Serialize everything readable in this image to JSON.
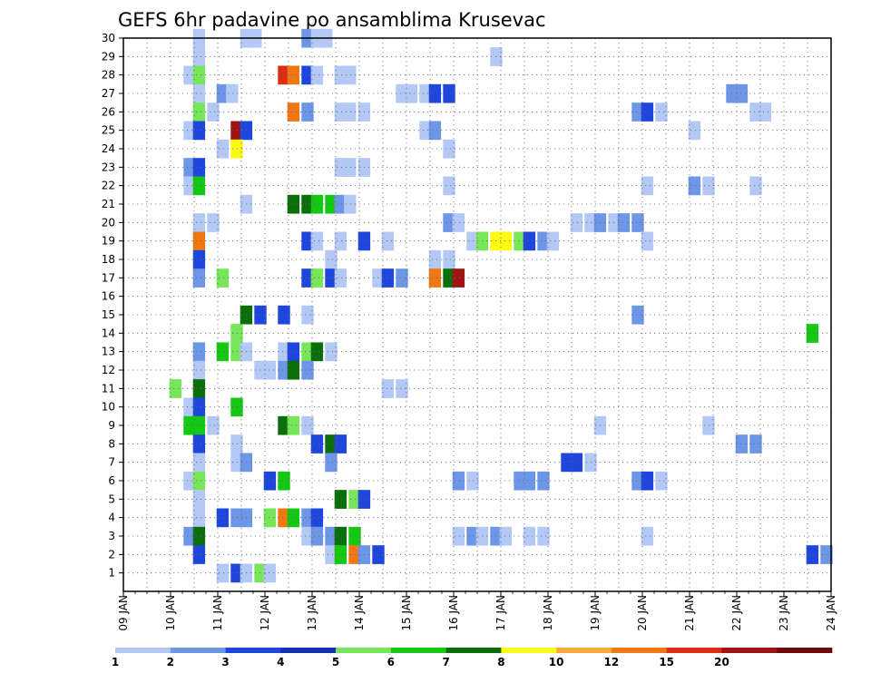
{
  "chart_data": {
    "type": "heatmap",
    "title": "GEFS 6hr padavine po ansamblima Krusevac",
    "xlabel": "",
    "ylabel": "",
    "x_tick_labels": [
      "09 JAN",
      "10 JAN",
      "11 JAN",
      "12 JAN",
      "13 JAN",
      "14 JAN",
      "15 JAN",
      "16 JAN",
      "17 JAN",
      "18 JAN",
      "19 JAN",
      "20 JAN",
      "21 JAN",
      "22 JAN",
      "23 JAN",
      "24 JAN"
    ],
    "xlim_days": [
      9,
      24
    ],
    "ylim": [
      0,
      30
    ],
    "y_ticks": [
      1,
      2,
      3,
      4,
      5,
      6,
      7,
      8,
      9,
      10,
      11,
      12,
      13,
      14,
      15,
      16,
      17,
      18,
      19,
      20,
      21,
      22,
      23,
      24,
      25,
      26,
      27,
      28,
      29,
      30
    ],
    "grid": true,
    "colorbar": {
      "labels": [
        "1",
        "2",
        "3",
        "4",
        "5",
        "6",
        "7",
        "8",
        "10",
        "12",
        "15",
        "20"
      ],
      "colors": [
        "#b4c8f5",
        "#6e96e6",
        "#1e46dc",
        "#1432b4",
        "#78e65a",
        "#14c814",
        "#0a6e0a",
        "#fafa14",
        "#faaa3c",
        "#f07814",
        "#dc2d14",
        "#a01414",
        "#6e0a0a"
      ]
    },
    "points": [
      {
        "day": 10.6,
        "member": 30,
        "bin": 1
      },
      {
        "day": 11.6,
        "member": 30,
        "bin": 1
      },
      {
        "day": 11.8,
        "member": 30,
        "bin": 1
      },
      {
        "day": 12.9,
        "member": 30,
        "bin": 2
      },
      {
        "day": 13.1,
        "member": 30,
        "bin": 1
      },
      {
        "day": 13.3,
        "member": 30,
        "bin": 1
      },
      {
        "day": 10.6,
        "member": 29,
        "bin": 1
      },
      {
        "day": 16.9,
        "member": 29,
        "bin": 1
      },
      {
        "day": 10.4,
        "member": 28,
        "bin": 1
      },
      {
        "day": 10.6,
        "member": 28,
        "bin": 5
      },
      {
        "day": 12.4,
        "member": 28,
        "bin": 11
      },
      {
        "day": 12.6,
        "member": 28,
        "bin": 10
      },
      {
        "day": 12.9,
        "member": 28,
        "bin": 3
      },
      {
        "day": 13.1,
        "member": 28,
        "bin": 1
      },
      {
        "day": 13.6,
        "member": 28,
        "bin": 1
      },
      {
        "day": 13.8,
        "member": 28,
        "bin": 1
      },
      {
        "day": 10.6,
        "member": 27,
        "bin": 1
      },
      {
        "day": 11.1,
        "member": 27,
        "bin": 2
      },
      {
        "day": 11.3,
        "member": 27,
        "bin": 1
      },
      {
        "day": 14.9,
        "member": 27,
        "bin": 1
      },
      {
        "day": 15.1,
        "member": 27,
        "bin": 1
      },
      {
        "day": 15.4,
        "member": 27,
        "bin": 1
      },
      {
        "day": 15.6,
        "member": 27,
        "bin": 3
      },
      {
        "day": 15.9,
        "member": 27,
        "bin": 3
      },
      {
        "day": 21.9,
        "member": 27,
        "bin": 2
      },
      {
        "day": 22.1,
        "member": 27,
        "bin": 2
      },
      {
        "day": 10.6,
        "member": 26,
        "bin": 5
      },
      {
        "day": 10.9,
        "member": 26,
        "bin": 1
      },
      {
        "day": 12.6,
        "member": 26,
        "bin": 10
      },
      {
        "day": 12.9,
        "member": 26,
        "bin": 2
      },
      {
        "day": 13.6,
        "member": 26,
        "bin": 1
      },
      {
        "day": 13.8,
        "member": 26,
        "bin": 1
      },
      {
        "day": 14.1,
        "member": 26,
        "bin": 1
      },
      {
        "day": 19.9,
        "member": 26,
        "bin": 2
      },
      {
        "day": 20.1,
        "member": 26,
        "bin": 3
      },
      {
        "day": 20.4,
        "member": 26,
        "bin": 1
      },
      {
        "day": 22.4,
        "member": 26,
        "bin": 1
      },
      {
        "day": 22.6,
        "member": 26,
        "bin": 1
      },
      {
        "day": 10.4,
        "member": 25,
        "bin": 1
      },
      {
        "day": 10.6,
        "member": 25,
        "bin": 3
      },
      {
        "day": 11.4,
        "member": 25,
        "bin": 12
      },
      {
        "day": 11.6,
        "member": 25,
        "bin": 3
      },
      {
        "day": 15.4,
        "member": 25,
        "bin": 1
      },
      {
        "day": 15.6,
        "member": 25,
        "bin": 2
      },
      {
        "day": 21.1,
        "member": 25,
        "bin": 1
      },
      {
        "day": 11.1,
        "member": 24,
        "bin": 1
      },
      {
        "day": 11.4,
        "member": 24,
        "bin": 8
      },
      {
        "day": 15.9,
        "member": 24,
        "bin": 1
      },
      {
        "day": 10.4,
        "member": 23,
        "bin": 2
      },
      {
        "day": 10.6,
        "member": 23,
        "bin": 3
      },
      {
        "day": 13.6,
        "member": 23,
        "bin": 1
      },
      {
        "day": 13.8,
        "member": 23,
        "bin": 1
      },
      {
        "day": 14.1,
        "member": 23,
        "bin": 1
      },
      {
        "day": 10.4,
        "member": 22,
        "bin": 1
      },
      {
        "day": 10.6,
        "member": 22,
        "bin": 6
      },
      {
        "day": 15.9,
        "member": 22,
        "bin": 1
      },
      {
        "day": 20.1,
        "member": 22,
        "bin": 1
      },
      {
        "day": 21.1,
        "member": 22,
        "bin": 2
      },
      {
        "day": 21.4,
        "member": 22,
        "bin": 1
      },
      {
        "day": 22.4,
        "member": 22,
        "bin": 1
      },
      {
        "day": 11.6,
        "member": 21,
        "bin": 1
      },
      {
        "day": 12.6,
        "member": 21,
        "bin": 7
      },
      {
        "day": 12.9,
        "member": 21,
        "bin": 7
      },
      {
        "day": 13.1,
        "member": 21,
        "bin": 6
      },
      {
        "day": 13.4,
        "member": 21,
        "bin": 6
      },
      {
        "day": 13.6,
        "member": 21,
        "bin": 2
      },
      {
        "day": 13.8,
        "member": 21,
        "bin": 1
      },
      {
        "day": 10.6,
        "member": 20,
        "bin": 1
      },
      {
        "day": 10.9,
        "member": 20,
        "bin": 1
      },
      {
        "day": 15.9,
        "member": 20,
        "bin": 2
      },
      {
        "day": 16.1,
        "member": 20,
        "bin": 1
      },
      {
        "day": 18.6,
        "member": 20,
        "bin": 1
      },
      {
        "day": 18.9,
        "member": 20,
        "bin": 1
      },
      {
        "day": 19.1,
        "member": 20,
        "bin": 2
      },
      {
        "day": 19.4,
        "member": 20,
        "bin": 1
      },
      {
        "day": 19.6,
        "member": 20,
        "bin": 2
      },
      {
        "day": 19.9,
        "member": 20,
        "bin": 2
      },
      {
        "day": 10.6,
        "member": 19,
        "bin": 10
      },
      {
        "day": 12.9,
        "member": 19,
        "bin": 3
      },
      {
        "day": 13.1,
        "member": 19,
        "bin": 1
      },
      {
        "day": 13.6,
        "member": 19,
        "bin": 1
      },
      {
        "day": 14.1,
        "member": 19,
        "bin": 3
      },
      {
        "day": 14.6,
        "member": 19,
        "bin": 1
      },
      {
        "day": 16.4,
        "member": 19,
        "bin": 1
      },
      {
        "day": 16.6,
        "member": 19,
        "bin": 5
      },
      {
        "day": 16.9,
        "member": 19,
        "bin": 8
      },
      {
        "day": 17.1,
        "member": 19,
        "bin": 8
      },
      {
        "day": 17.4,
        "member": 19,
        "bin": 5
      },
      {
        "day": 17.6,
        "member": 19,
        "bin": 3
      },
      {
        "day": 17.9,
        "member": 19,
        "bin": 2
      },
      {
        "day": 18.1,
        "member": 19,
        "bin": 1
      },
      {
        "day": 20.1,
        "member": 19,
        "bin": 1
      },
      {
        "day": 10.6,
        "member": 18,
        "bin": 3
      },
      {
        "day": 13.4,
        "member": 18,
        "bin": 1
      },
      {
        "day": 15.6,
        "member": 18,
        "bin": 1
      },
      {
        "day": 15.9,
        "member": 18,
        "bin": 1
      },
      {
        "day": 10.6,
        "member": 17,
        "bin": 2
      },
      {
        "day": 11.1,
        "member": 17,
        "bin": 5
      },
      {
        "day": 12.9,
        "member": 17,
        "bin": 3
      },
      {
        "day": 13.1,
        "member": 17,
        "bin": 5
      },
      {
        "day": 13.4,
        "member": 17,
        "bin": 3
      },
      {
        "day": 13.6,
        "member": 17,
        "bin": 1
      },
      {
        "day": 14.4,
        "member": 17,
        "bin": 1
      },
      {
        "day": 14.6,
        "member": 17,
        "bin": 3
      },
      {
        "day": 14.9,
        "member": 17,
        "bin": 2
      },
      {
        "day": 15.6,
        "member": 17,
        "bin": 10
      },
      {
        "day": 15.9,
        "member": 17,
        "bin": 7
      },
      {
        "day": 16.1,
        "member": 17,
        "bin": 12
      },
      {
        "day": 11.6,
        "member": 15,
        "bin": 7
      },
      {
        "day": 11.9,
        "member": 15,
        "bin": 3
      },
      {
        "day": 12.4,
        "member": 15,
        "bin": 3
      },
      {
        "day": 12.9,
        "member": 15,
        "bin": 1
      },
      {
        "day": 19.9,
        "member": 15,
        "bin": 2
      },
      {
        "day": 11.4,
        "member": 14,
        "bin": 5
      },
      {
        "day": 23.6,
        "member": 14,
        "bin": 6
      },
      {
        "day": 10.6,
        "member": 13,
        "bin": 2
      },
      {
        "day": 11.1,
        "member": 13,
        "bin": 6
      },
      {
        "day": 11.4,
        "member": 13,
        "bin": 5
      },
      {
        "day": 11.6,
        "member": 13,
        "bin": 1
      },
      {
        "day": 12.4,
        "member": 13,
        "bin": 1
      },
      {
        "day": 12.6,
        "member": 13,
        "bin": 3
      },
      {
        "day": 12.9,
        "member": 13,
        "bin": 5
      },
      {
        "day": 13.1,
        "member": 13,
        "bin": 7
      },
      {
        "day": 13.4,
        "member": 13,
        "bin": 1
      },
      {
        "day": 10.6,
        "member": 12,
        "bin": 1
      },
      {
        "day": 11.9,
        "member": 12,
        "bin": 1
      },
      {
        "day": 12.1,
        "member": 12,
        "bin": 1
      },
      {
        "day": 12.4,
        "member": 12,
        "bin": 2
      },
      {
        "day": 12.6,
        "member": 12,
        "bin": 7
      },
      {
        "day": 12.9,
        "member": 12,
        "bin": 2
      },
      {
        "day": 10.1,
        "member": 11,
        "bin": 5
      },
      {
        "day": 10.6,
        "member": 11,
        "bin": 7
      },
      {
        "day": 14.6,
        "member": 11,
        "bin": 1
      },
      {
        "day": 14.9,
        "member": 11,
        "bin": 1
      },
      {
        "day": 10.4,
        "member": 10,
        "bin": 1
      },
      {
        "day": 10.6,
        "member": 10,
        "bin": 3
      },
      {
        "day": 11.4,
        "member": 10,
        "bin": 6
      },
      {
        "day": 10.4,
        "member": 9,
        "bin": 6
      },
      {
        "day": 10.6,
        "member": 9,
        "bin": 6
      },
      {
        "day": 10.9,
        "member": 9,
        "bin": 1
      },
      {
        "day": 12.4,
        "member": 9,
        "bin": 7
      },
      {
        "day": 12.6,
        "member": 9,
        "bin": 5
      },
      {
        "day": 12.9,
        "member": 9,
        "bin": 1
      },
      {
        "day": 19.1,
        "member": 9,
        "bin": 1
      },
      {
        "day": 21.4,
        "member": 9,
        "bin": 1
      },
      {
        "day": 10.6,
        "member": 8,
        "bin": 3
      },
      {
        "day": 11.4,
        "member": 8,
        "bin": 1
      },
      {
        "day": 13.1,
        "member": 8,
        "bin": 3
      },
      {
        "day": 13.4,
        "member": 8,
        "bin": 7
      },
      {
        "day": 13.6,
        "member": 8,
        "bin": 3
      },
      {
        "day": 22.1,
        "member": 8,
        "bin": 2
      },
      {
        "day": 22.4,
        "member": 8,
        "bin": 2
      },
      {
        "day": 10.6,
        "member": 7,
        "bin": 1
      },
      {
        "day": 11.4,
        "member": 7,
        "bin": 1
      },
      {
        "day": 11.6,
        "member": 7,
        "bin": 2
      },
      {
        "day": 13.4,
        "member": 7,
        "bin": 2
      },
      {
        "day": 18.4,
        "member": 7,
        "bin": 3
      },
      {
        "day": 18.6,
        "member": 7,
        "bin": 3
      },
      {
        "day": 18.9,
        "member": 7,
        "bin": 1
      },
      {
        "day": 10.4,
        "member": 6,
        "bin": 1
      },
      {
        "day": 10.6,
        "member": 6,
        "bin": 5
      },
      {
        "day": 12.1,
        "member": 6,
        "bin": 3
      },
      {
        "day": 12.4,
        "member": 6,
        "bin": 6
      },
      {
        "day": 16.1,
        "member": 6,
        "bin": 2
      },
      {
        "day": 16.4,
        "member": 6,
        "bin": 1
      },
      {
        "day": 17.4,
        "member": 6,
        "bin": 2
      },
      {
        "day": 17.6,
        "member": 6,
        "bin": 2
      },
      {
        "day": 17.9,
        "member": 6,
        "bin": 2
      },
      {
        "day": 19.9,
        "member": 6,
        "bin": 2
      },
      {
        "day": 20.1,
        "member": 6,
        "bin": 3
      },
      {
        "day": 20.4,
        "member": 6,
        "bin": 1
      },
      {
        "day": 10.6,
        "member": 5,
        "bin": 1
      },
      {
        "day": 13.6,
        "member": 5,
        "bin": 7
      },
      {
        "day": 13.9,
        "member": 5,
        "bin": 5
      },
      {
        "day": 14.1,
        "member": 5,
        "bin": 3
      },
      {
        "day": 10.6,
        "member": 4,
        "bin": 1
      },
      {
        "day": 11.1,
        "member": 4,
        "bin": 3
      },
      {
        "day": 11.4,
        "member": 4,
        "bin": 2
      },
      {
        "day": 11.6,
        "member": 4,
        "bin": 2
      },
      {
        "day": 12.1,
        "member": 4,
        "bin": 5
      },
      {
        "day": 12.4,
        "member": 4,
        "bin": 10
      },
      {
        "day": 12.6,
        "member": 4,
        "bin": 6
      },
      {
        "day": 12.9,
        "member": 4,
        "bin": 2
      },
      {
        "day": 13.1,
        "member": 4,
        "bin": 3
      },
      {
        "day": 10.4,
        "member": 3,
        "bin": 2
      },
      {
        "day": 10.6,
        "member": 3,
        "bin": 7
      },
      {
        "day": 12.9,
        "member": 3,
        "bin": 1
      },
      {
        "day": 13.1,
        "member": 3,
        "bin": 2
      },
      {
        "day": 13.4,
        "member": 3,
        "bin": 2
      },
      {
        "day": 13.6,
        "member": 3,
        "bin": 7
      },
      {
        "day": 13.9,
        "member": 3,
        "bin": 6
      },
      {
        "day": 16.1,
        "member": 3,
        "bin": 1
      },
      {
        "day": 16.4,
        "member": 3,
        "bin": 2
      },
      {
        "day": 16.6,
        "member": 3,
        "bin": 1
      },
      {
        "day": 16.9,
        "member": 3,
        "bin": 2
      },
      {
        "day": 17.1,
        "member": 3,
        "bin": 1
      },
      {
        "day": 17.6,
        "member": 3,
        "bin": 1
      },
      {
        "day": 17.9,
        "member": 3,
        "bin": 1
      },
      {
        "day": 20.1,
        "member": 3,
        "bin": 1
      },
      {
        "day": 10.6,
        "member": 2,
        "bin": 3
      },
      {
        "day": 13.4,
        "member": 2,
        "bin": 1
      },
      {
        "day": 13.6,
        "member": 2,
        "bin": 6
      },
      {
        "day": 13.9,
        "member": 2,
        "bin": 10
      },
      {
        "day": 14.1,
        "member": 2,
        "bin": 2
      },
      {
        "day": 14.4,
        "member": 2,
        "bin": 3
      },
      {
        "day": 23.6,
        "member": 2,
        "bin": 3
      },
      {
        "day": 23.9,
        "member": 2,
        "bin": 2
      },
      {
        "day": 11.1,
        "member": 1,
        "bin": 1
      },
      {
        "day": 11.4,
        "member": 1,
        "bin": 3
      },
      {
        "day": 11.6,
        "member": 1,
        "bin": 1
      },
      {
        "day": 11.9,
        "member": 1,
        "bin": 5
      },
      {
        "day": 12.1,
        "member": 1,
        "bin": 1
      }
    ]
  }
}
